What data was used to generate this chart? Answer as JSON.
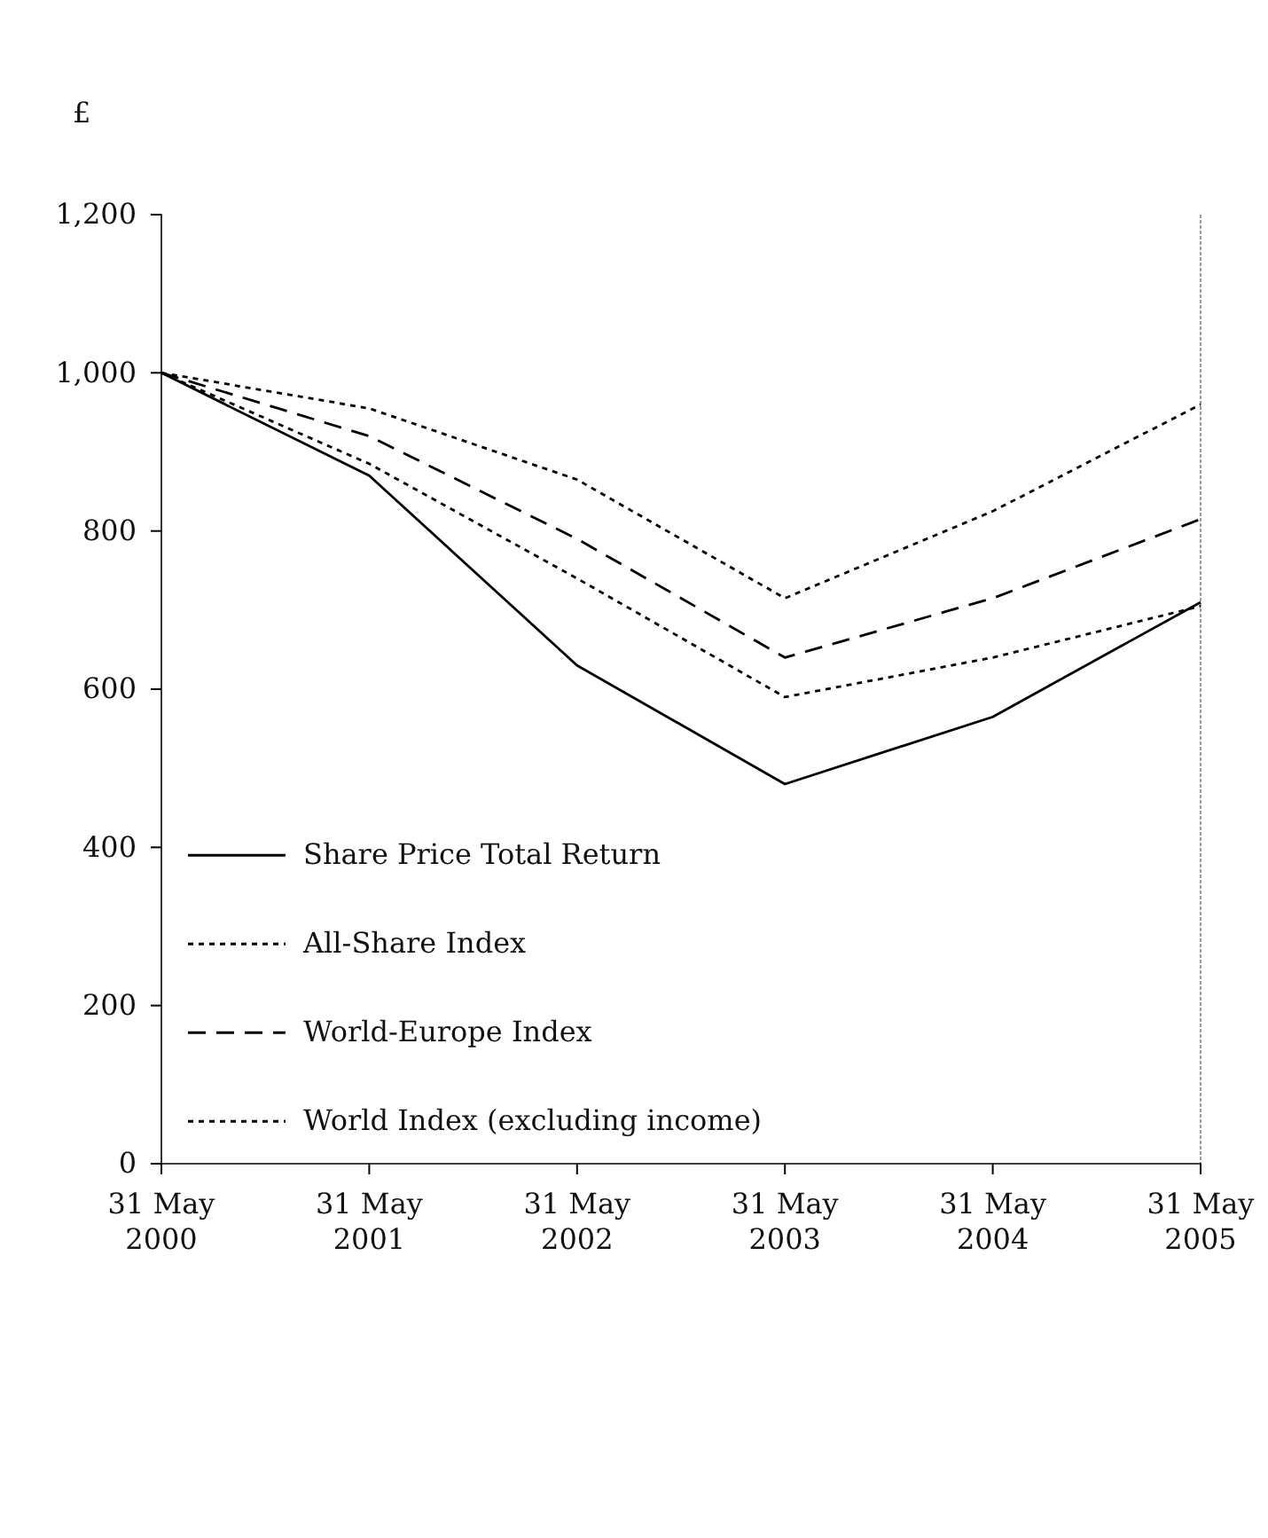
{
  "chart_data": {
    "type": "line",
    "ylabel": "£",
    "categories": [
      "31 May\n2000",
      "31 May\n2001",
      "31 May\n2002",
      "31 May\n2003",
      "31 May\n2004",
      "31 May\n2005"
    ],
    "series": [
      {
        "name": "Share Price Total Return",
        "color": "#000000",
        "line_style": "solid",
        "values": [
          1000,
          870,
          630,
          480,
          565,
          710
        ]
      },
      {
        "name": "All-Share Index",
        "color": "#000000",
        "line_style": "dotted",
        "values": [
          1000,
          955,
          865,
          715,
          825,
          960
        ]
      },
      {
        "name": "World-Europe Index",
        "color": "#000000",
        "line_style": "dashed",
        "values": [
          1000,
          920,
          790,
          640,
          715,
          815
        ]
      },
      {
        "name": "World Index (excluding income)",
        "color": "#000000",
        "line_style": "dotted",
        "values": [
          1000,
          885,
          740,
          590,
          640,
          705
        ]
      }
    ],
    "ylim": [
      0,
      1200
    ],
    "yticks": [
      0,
      200,
      400,
      600,
      800,
      {
        "value": 1000,
        "label": "1,000"
      },
      {
        "value": 1200,
        "label": "1,200"
      }
    ],
    "grid": false,
    "legend": "bottom left",
    "marker": "none"
  }
}
